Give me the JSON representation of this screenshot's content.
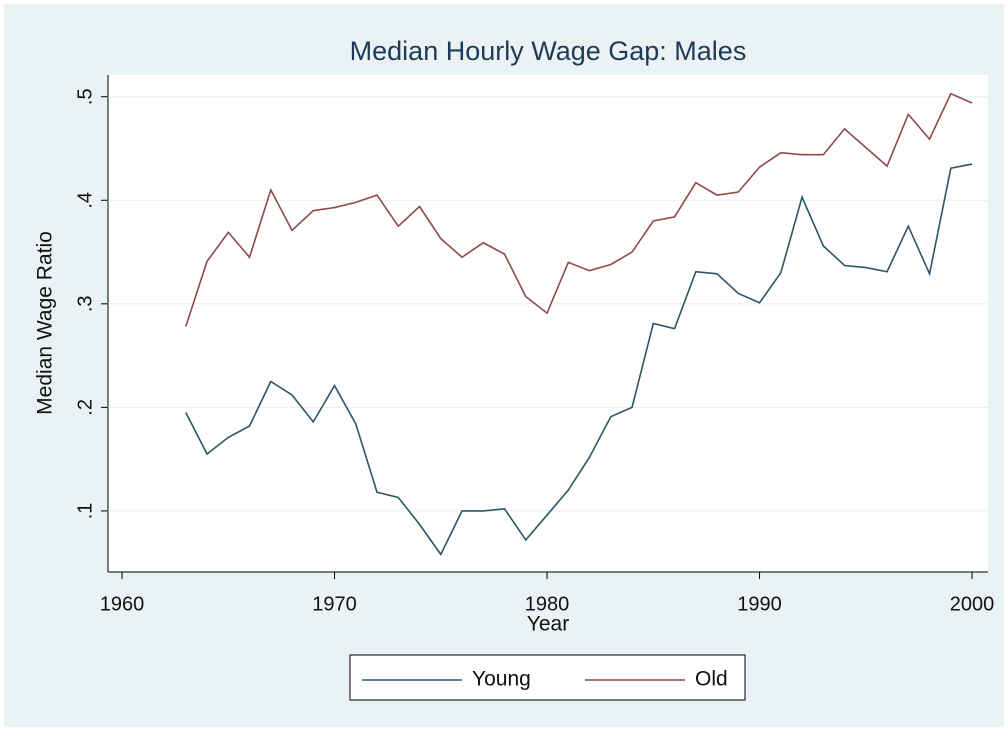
{
  "chart_data": {
    "type": "line",
    "title": "Median Hourly Wage Gap: Males",
    "xlabel": "Year",
    "ylabel": "Median Wage Ratio",
    "x": [
      1963,
      1964,
      1965,
      1966,
      1967,
      1968,
      1969,
      1970,
      1971,
      1972,
      1973,
      1974,
      1975,
      1976,
      1977,
      1978,
      1979,
      1980,
      1981,
      1982,
      1983,
      1984,
      1985,
      1986,
      1987,
      1988,
      1989,
      1990,
      1991,
      1992,
      1993,
      1994,
      1995,
      1996,
      1997,
      1998,
      1999,
      2000
    ],
    "series": [
      {
        "name": "Young",
        "color": "#2f5566",
        "values": [
          0.195,
          0.155,
          0.171,
          0.182,
          0.225,
          0.212,
          0.186,
          0.221,
          0.184,
          0.118,
          0.113,
          0.087,
          0.058,
          0.1,
          0.1,
          0.102,
          0.072,
          0.096,
          0.12,
          0.152,
          0.191,
          0.2,
          0.281,
          0.276,
          0.331,
          0.329,
          0.31,
          0.301,
          0.33,
          0.403,
          0.356,
          0.337,
          0.335,
          0.331,
          0.375,
          0.329,
          0.431,
          0.435
        ]
      },
      {
        "name": "Old",
        "color": "#8e4a4a",
        "values": [
          0.278,
          0.341,
          0.369,
          0.345,
          0.41,
          0.371,
          0.39,
          0.393,
          0.398,
          0.405,
          0.375,
          0.394,
          0.363,
          0.345,
          0.359,
          0.348,
          0.307,
          0.291,
          0.34,
          0.332,
          0.338,
          0.35,
          0.38,
          0.384,
          0.417,
          0.405,
          0.408,
          0.432,
          0.446,
          0.444,
          0.444,
          0.469,
          0.451,
          0.433,
          0.483,
          0.459,
          0.503,
          0.494
        ]
      }
    ],
    "xlim": [
      1959.34,
      2000.75
    ],
    "xticks": [
      1960,
      1970,
      1980,
      1990,
      2000
    ],
    "ylim": [
      0.041,
      0.521
    ],
    "yticks": [
      {
        "value": 0.1,
        "label": ".1"
      },
      {
        "value": 0.2,
        "label": ".2"
      },
      {
        "value": 0.3,
        "label": ".3"
      },
      {
        "value": 0.4,
        "label": ".4"
      },
      {
        "value": 0.5,
        "label": ".5"
      }
    ],
    "grid": true,
    "legend": "bottom"
  }
}
